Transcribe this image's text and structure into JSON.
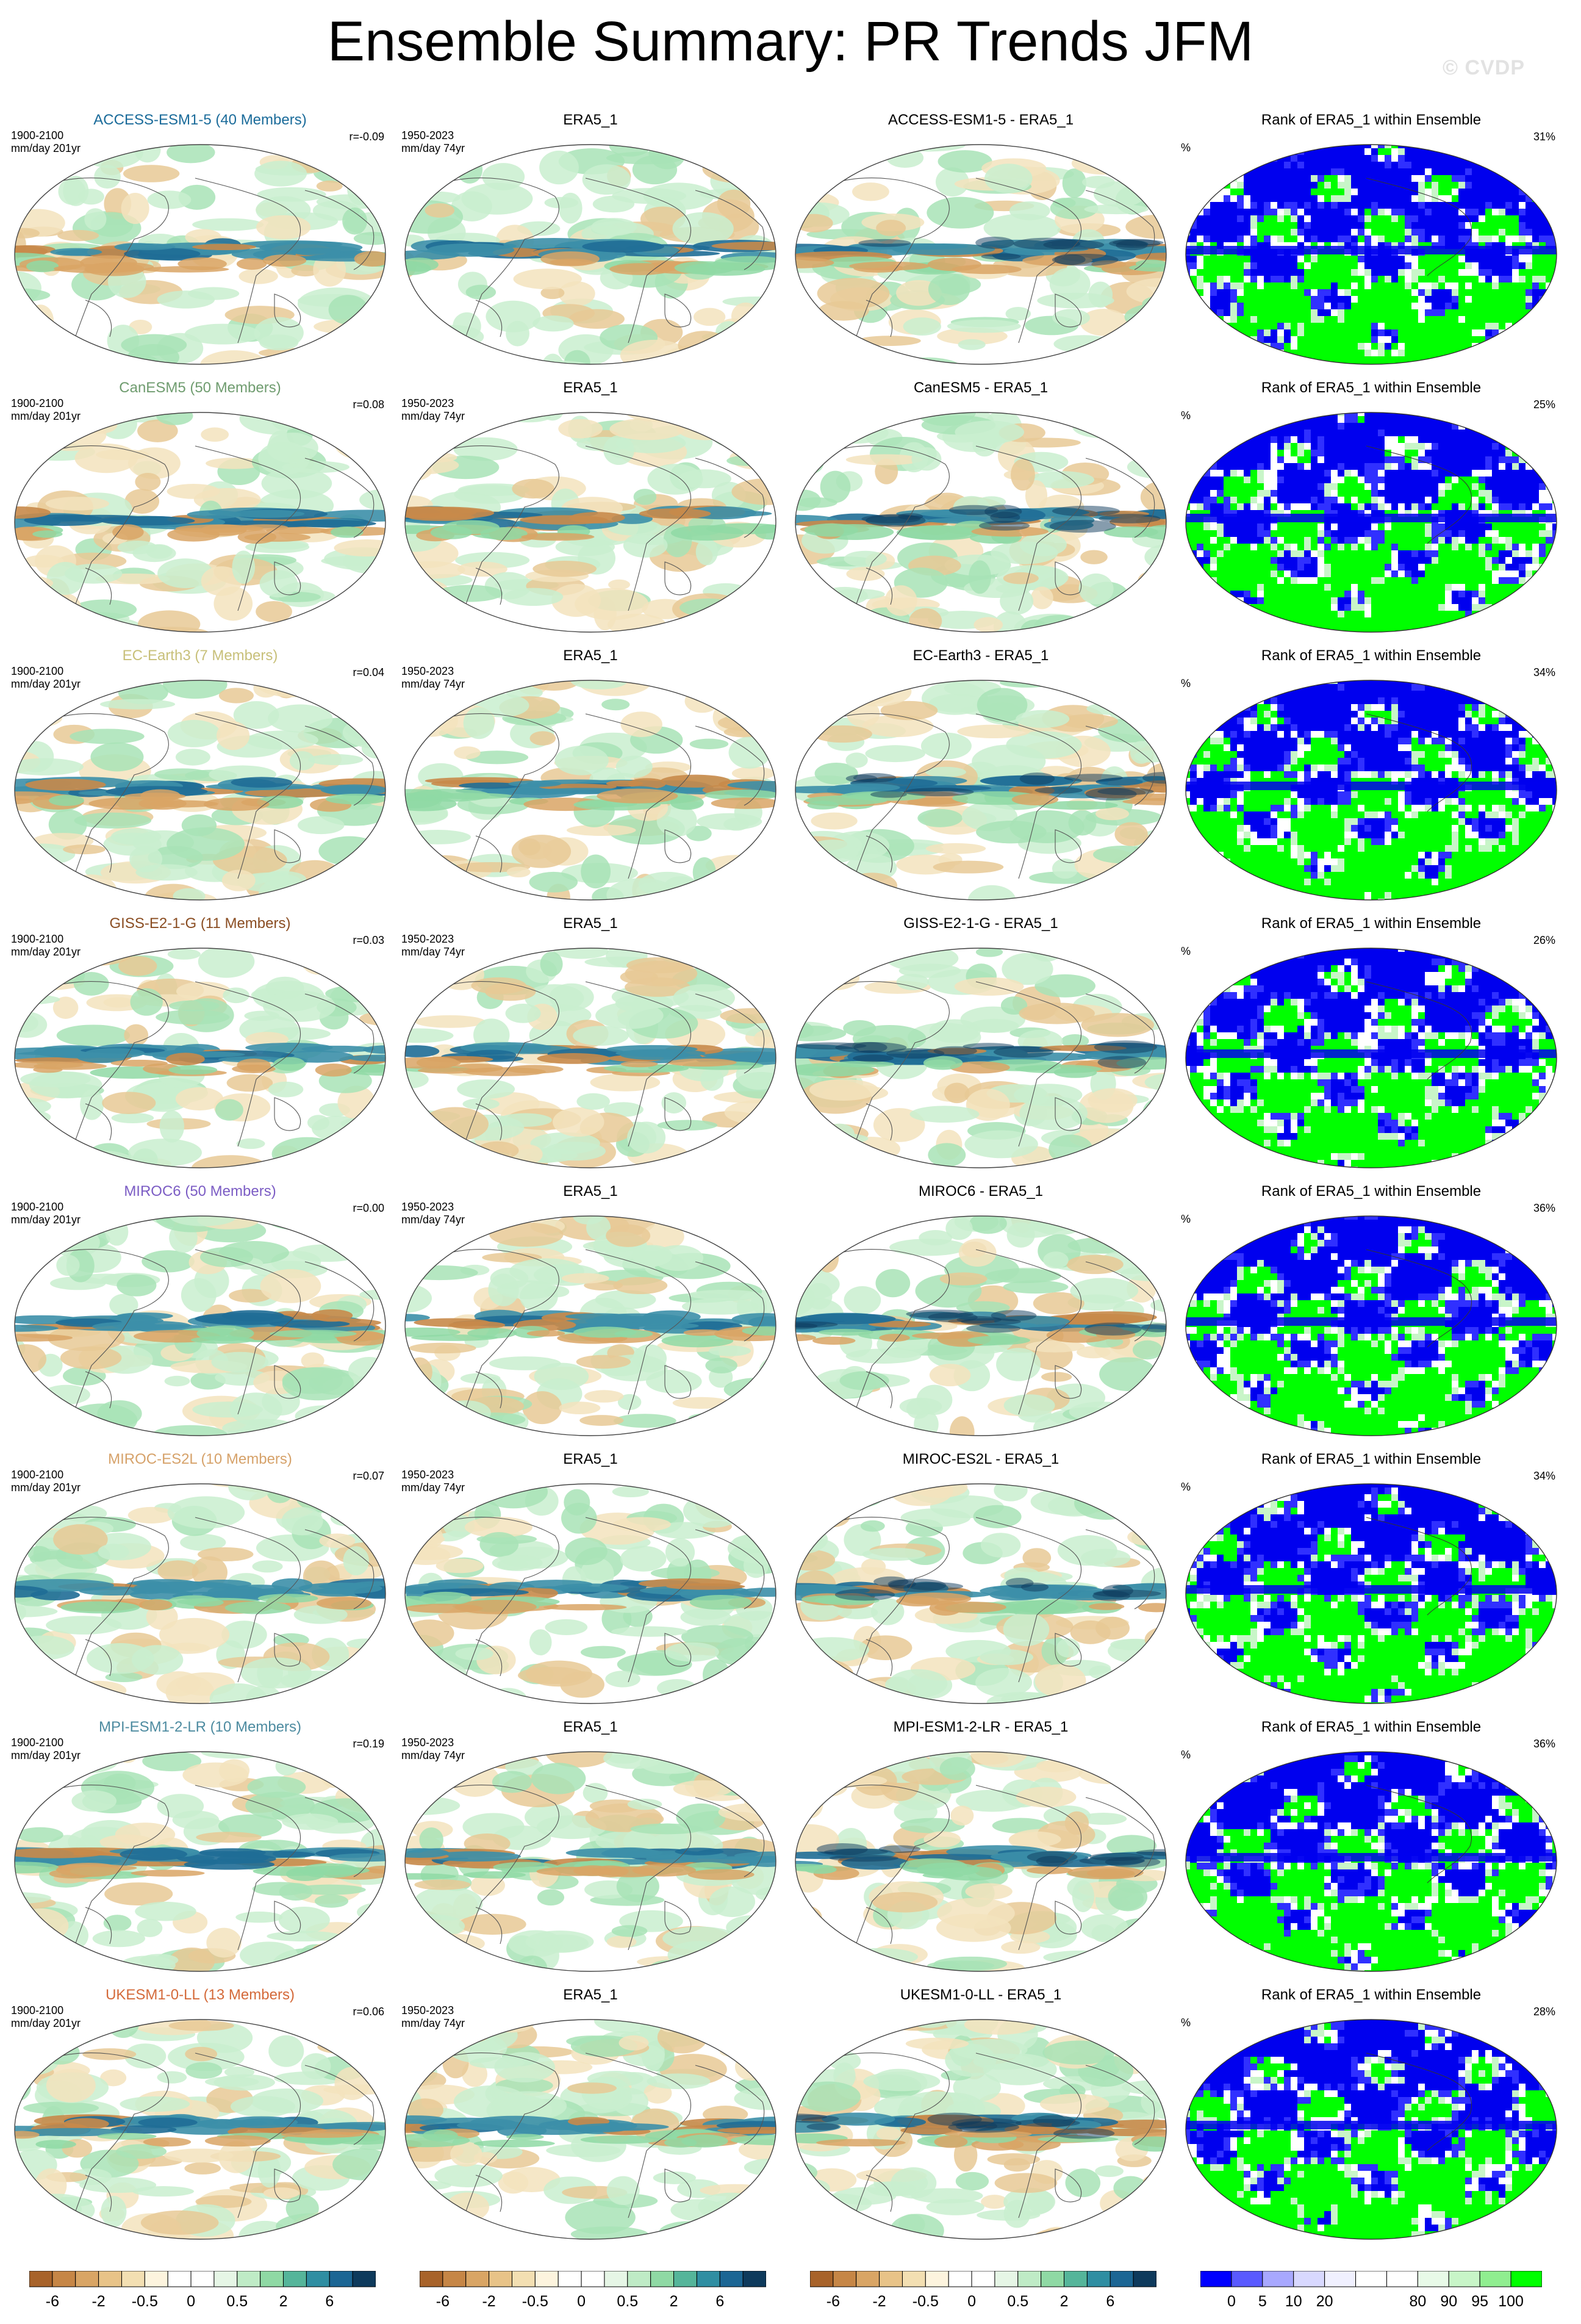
{
  "title": "Ensemble Summary: PR Trends JFM",
  "watermark": "© CVDP",
  "period_model": "1900-2100",
  "period_obs": "1950-2023",
  "units_model": "mm/day 201yr",
  "units_obs": "mm/day 74yr",
  "obs_name": "ERA5_1",
  "rank_label": "Rank of ERA5_1 within Ensemble",
  "percent_sign": "%",
  "rows": [
    {
      "model": "ACCESS-ESM1-5",
      "members": "ACCESS-ESM1-5 (40 Members)",
      "color": "#1a6b9a",
      "r": "r=-0.09",
      "diff": "ACCESS-ESM1-5 - ERA5_1",
      "rank_pct": "31%"
    },
    {
      "model": "CanESM5",
      "members": "CanESM5 (50 Members)",
      "color": "#6f9c6f",
      "r": "r=0.08",
      "diff": "CanESM5 - ERA5_1",
      "rank_pct": "25%"
    },
    {
      "model": "EC-Earth3",
      "members": "EC-Earth3 (7 Members)",
      "color": "#c8c07a",
      "r": "r=0.04",
      "diff": "EC-Earth3 - ERA5_1",
      "rank_pct": "34%"
    },
    {
      "model": "GISS-E2-1-G",
      "members": "GISS-E2-1-G (11 Members)",
      "color": "#8a4d22",
      "r": "r=0.03",
      "diff": "GISS-E2-1-G - ERA5_1",
      "rank_pct": "26%"
    },
    {
      "model": "MIROC6",
      "members": "MIROC6 (50 Members)",
      "color": "#7b5cc4",
      "r": "r=0.00",
      "diff": "MIROC6 - ERA5_1",
      "rank_pct": "36%"
    },
    {
      "model": "MIROC-ES2L",
      "members": "MIROC-ES2L (10 Members)",
      "color": "#d6a26a",
      "r": "r=0.07",
      "diff": "MIROC-ES2L - ERA5_1",
      "rank_pct": "34%"
    },
    {
      "model": "MPI-ESM1-2-LR",
      "members": "MPI-ESM1-2-LR (10 Members)",
      "color": "#4d8ba0",
      "r": "r=0.19",
      "diff": "MPI-ESM1-2-LR - ERA5_1",
      "rank_pct": "36%"
    },
    {
      "model": "UKESM1-0-LL",
      "members": "UKESM1-0-LL (13 Members)",
      "color": "#d46a3a",
      "r": "r=0.06",
      "diff": "UKESM1-0-LL - ERA5_1",
      "rank_pct": "28%"
    }
  ],
  "colorbar_trend": {
    "colors": [
      "#a8632a",
      "#c68646",
      "#d9a565",
      "#e8c388",
      "#f3dfb2",
      "#fdf4de",
      "#ffffff",
      "#ffffff",
      "#e6f6e6",
      "#bfebc6",
      "#8fd9a4",
      "#55b59a",
      "#2f8ea2",
      "#1c6694",
      "#0e3a5c"
    ],
    "labels": [
      "-6",
      "-2",
      "-0.5",
      "0",
      "0.5",
      "2",
      "6"
    ],
    "label_positions": [
      1,
      3,
      5,
      7,
      9,
      11,
      13
    ]
  },
  "colorbar_rank": {
    "colors": [
      "#0000ff",
      "#5a5aff",
      "#a8a8ff",
      "#d8d8ff",
      "#f0f0ff",
      "#ffffff",
      "#ffffff",
      "#e8fae8",
      "#c8f5c8",
      "#90ee90",
      "#00ff00"
    ],
    "labels": [
      "0",
      "5",
      "10",
      "20",
      "80",
      "90",
      "95",
      "100"
    ],
    "label_positions": [
      1,
      2,
      3,
      4,
      7,
      8,
      9,
      10
    ]
  }
}
